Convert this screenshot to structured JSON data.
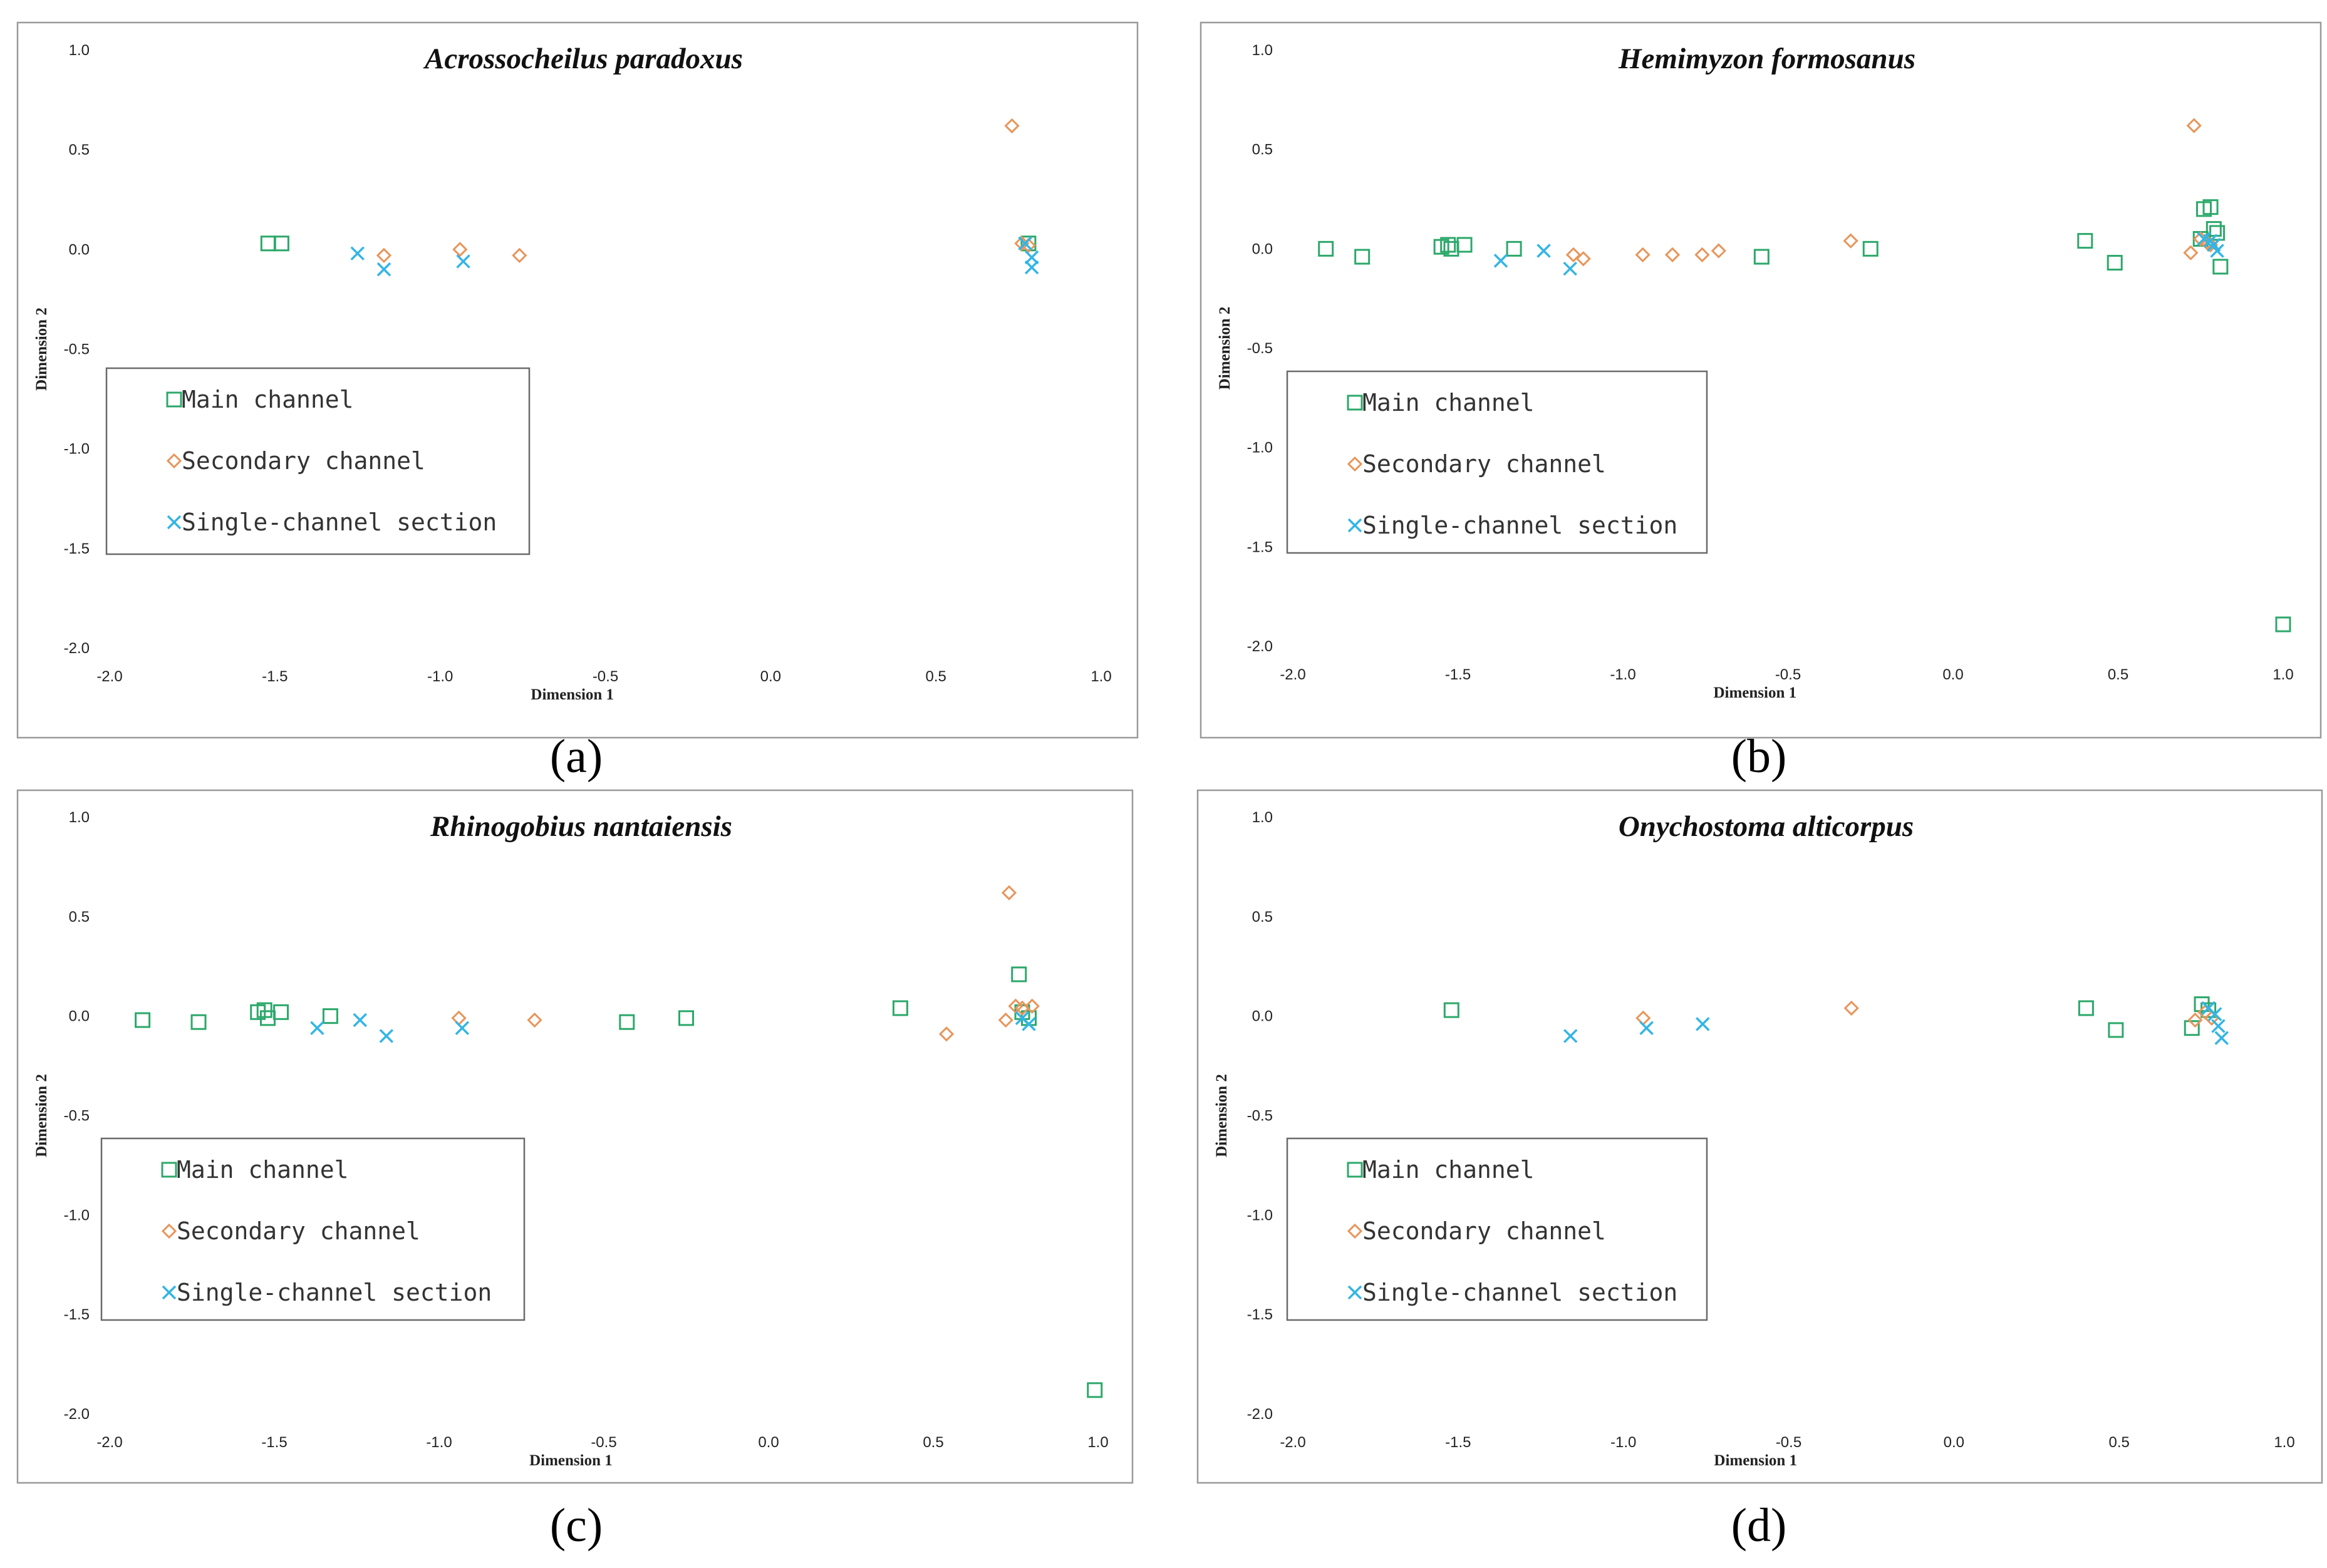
{
  "chart_data": [
    {
      "type": "scatter",
      "panel_label": "(a)",
      "title": "Acrossocheilus paradoxus",
      "xlabel": "Dimension 1",
      "ylabel": "Dimension 2",
      "xlim": [
        -2.0,
        1.0
      ],
      "ylim": [
        -2.0,
        1.0
      ],
      "xticks": [
        "-2.0",
        "-1.5",
        "-1.0",
        "-0.5",
        "0.0",
        "0.5",
        "1.0"
      ],
      "yticks": [
        "1.0",
        "0.5",
        "0.0",
        "-0.5",
        "-1.0",
        "-1.5",
        "-2.0"
      ],
      "grid": false,
      "legend_position": "center-left",
      "series": [
        {
          "name": "Main channel",
          "marker": "square",
          "color": "#2ca86a",
          "points": [
            [
              -1.52,
              0.03
            ],
            [
              -1.48,
              0.03
            ],
            [
              0.78,
              0.03
            ]
          ]
        },
        {
          "name": "Secondary channel",
          "marker": "diamond",
          "color": "#e8955a",
          "points": [
            [
              -1.17,
              -0.03
            ],
            [
              -0.94,
              0.0
            ],
            [
              -0.76,
              -0.03
            ],
            [
              0.73,
              0.62
            ],
            [
              0.76,
              0.03
            ],
            [
              0.78,
              0.02
            ]
          ]
        },
        {
          "name": "Single-channel section",
          "marker": "x",
          "color": "#33b5e5",
          "points": [
            [
              -1.25,
              -0.02
            ],
            [
              -1.17,
              -0.1
            ],
            [
              -0.93,
              -0.06
            ],
            [
              0.77,
              0.03
            ],
            [
              0.79,
              -0.04
            ],
            [
              0.79,
              -0.09
            ]
          ]
        }
      ]
    },
    {
      "type": "scatter",
      "panel_label": "(b)",
      "title": "Hemimyzon formosanus",
      "xlabel": "Dimension 1",
      "ylabel": "Dimension 2",
      "xlim": [
        -2.0,
        1.0
      ],
      "ylim": [
        -2.0,
        1.0
      ],
      "xticks": [
        "-2.0",
        "-1.5",
        "-1.0",
        "-0.5",
        "0.0",
        "0.5",
        "1.0"
      ],
      "yticks": [
        "1.0",
        "0.5",
        "0.0",
        "-0.5",
        "-1.0",
        "-1.5",
        "-2.0"
      ],
      "grid": false,
      "legend_position": "center-left",
      "series": [
        {
          "name": "Main channel",
          "marker": "square",
          "color": "#2ca86a",
          "points": [
            [
              -1.9,
              0.0
            ],
            [
              -1.79,
              -0.04
            ],
            [
              -1.55,
              0.01
            ],
            [
              -1.53,
              0.02
            ],
            [
              -1.52,
              0.0
            ],
            [
              -1.48,
              0.02
            ],
            [
              -1.33,
              0.0
            ],
            [
              -0.58,
              -0.04
            ],
            [
              -0.25,
              0.0
            ],
            [
              0.4,
              0.04
            ],
            [
              0.49,
              -0.07
            ],
            [
              0.76,
              0.2
            ],
            [
              0.78,
              0.21
            ],
            [
              0.79,
              0.1
            ],
            [
              0.8,
              0.08
            ],
            [
              0.81,
              -0.09
            ],
            [
              0.75,
              0.05
            ],
            [
              1.0,
              -1.89
            ]
          ]
        },
        {
          "name": "Secondary channel",
          "marker": "diamond",
          "color": "#e8955a",
          "points": [
            [
              -1.15,
              -0.03
            ],
            [
              -1.12,
              -0.05
            ],
            [
              -0.94,
              -0.03
            ],
            [
              -0.85,
              -0.03
            ],
            [
              -0.76,
              -0.03
            ],
            [
              -0.71,
              -0.01
            ],
            [
              -0.31,
              0.04
            ],
            [
              0.72,
              -0.02
            ],
            [
              0.73,
              0.62
            ],
            [
              0.75,
              0.05
            ],
            [
              0.77,
              0.03
            ],
            [
              0.78,
              0.02
            ]
          ]
        },
        {
          "name": "Single-channel section",
          "marker": "x",
          "color": "#33b5e5",
          "points": [
            [
              -1.37,
              -0.06
            ],
            [
              -1.24,
              -0.01
            ],
            [
              -1.16,
              -0.1
            ],
            [
              0.76,
              0.05
            ],
            [
              0.78,
              0.04
            ],
            [
              0.79,
              0.02
            ],
            [
              0.8,
              -0.01
            ]
          ]
        }
      ]
    },
    {
      "type": "scatter",
      "panel_label": "(c)",
      "title": "Rhinogobius nantaiensis",
      "xlabel": "Dimension 1",
      "ylabel": "Dimension 2",
      "xlim": [
        -2.0,
        1.0
      ],
      "ylim": [
        -2.0,
        1.0
      ],
      "xticks": [
        "-2.0",
        "-1.5",
        "-1.0",
        "-0.5",
        "0.0",
        "0.5",
        "1.0"
      ],
      "yticks": [
        "1.0",
        "0.5",
        "0.0",
        "-0.5",
        "-1.0",
        "-1.5",
        "-2.0"
      ],
      "grid": false,
      "legend_position": "lower-left",
      "series": [
        {
          "name": "Main channel",
          "marker": "square",
          "color": "#2ca86a",
          "points": [
            [
              -1.9,
              -0.02
            ],
            [
              -1.73,
              -0.03
            ],
            [
              -1.55,
              0.02
            ],
            [
              -1.53,
              0.03
            ],
            [
              -1.52,
              -0.01
            ],
            [
              -1.48,
              0.02
            ],
            [
              -1.33,
              0.0
            ],
            [
              -0.43,
              -0.03
            ],
            [
              -0.25,
              -0.01
            ],
            [
              0.4,
              0.04
            ],
            [
              0.76,
              0.21
            ],
            [
              0.77,
              0.02
            ],
            [
              0.79,
              -0.01
            ],
            [
              0.99,
              -1.88
            ]
          ]
        },
        {
          "name": "Secondary channel",
          "marker": "diamond",
          "color": "#e8955a",
          "points": [
            [
              -0.94,
              -0.01
            ],
            [
              -0.71,
              -0.02
            ],
            [
              0.54,
              -0.09
            ],
            [
              0.72,
              -0.02
            ],
            [
              0.73,
              0.62
            ],
            [
              0.75,
              0.05
            ],
            [
              0.77,
              0.04
            ],
            [
              0.8,
              0.05
            ]
          ]
        },
        {
          "name": "Single-channel section",
          "marker": "x",
          "color": "#33b5e5",
          "points": [
            [
              -1.37,
              -0.06
            ],
            [
              -1.24,
              -0.02
            ],
            [
              -1.16,
              -0.1
            ],
            [
              -0.93,
              -0.06
            ],
            [
              0.77,
              -0.01
            ],
            [
              0.79,
              -0.04
            ]
          ]
        }
      ]
    },
    {
      "type": "scatter",
      "panel_label": "(d)",
      "title": "Onychostoma alticorpus",
      "xlabel": "Dimension 1",
      "ylabel": "Dimension 2",
      "xlim": [
        -2.0,
        1.0
      ],
      "ylim": [
        -2.0,
        1.0
      ],
      "xticks": [
        "-2.0",
        "-1.5",
        "-1.0",
        "-0.5",
        "0.0",
        "0.5",
        "1.0"
      ],
      "yticks": [
        "1.0",
        "0.5",
        "0.0",
        "-0.5",
        "-1.0",
        "-1.5",
        "-2.0"
      ],
      "grid": false,
      "legend_position": "lower-left",
      "series": [
        {
          "name": "Main channel",
          "marker": "square",
          "color": "#2ca86a",
          "points": [
            [
              -1.52,
              0.03
            ],
            [
              0.4,
              0.04
            ],
            [
              0.49,
              -0.07
            ],
            [
              0.72,
              -0.06
            ],
            [
              0.75,
              0.06
            ],
            [
              0.77,
              0.03
            ]
          ]
        },
        {
          "name": "Secondary channel",
          "marker": "diamond",
          "color": "#e8955a",
          "points": [
            [
              -0.94,
              -0.01
            ],
            [
              -0.31,
              0.04
            ],
            [
              0.73,
              -0.02
            ],
            [
              0.76,
              0.02
            ],
            [
              0.78,
              -0.01
            ]
          ]
        },
        {
          "name": "Single-channel section",
          "marker": "x",
          "color": "#33b5e5",
          "points": [
            [
              -1.16,
              -0.1
            ],
            [
              -0.93,
              -0.06
            ],
            [
              -0.76,
              -0.04
            ],
            [
              0.77,
              0.04
            ],
            [
              0.79,
              0.01
            ],
            [
              0.8,
              -0.05
            ],
            [
              0.81,
              -0.11
            ]
          ]
        }
      ]
    }
  ]
}
